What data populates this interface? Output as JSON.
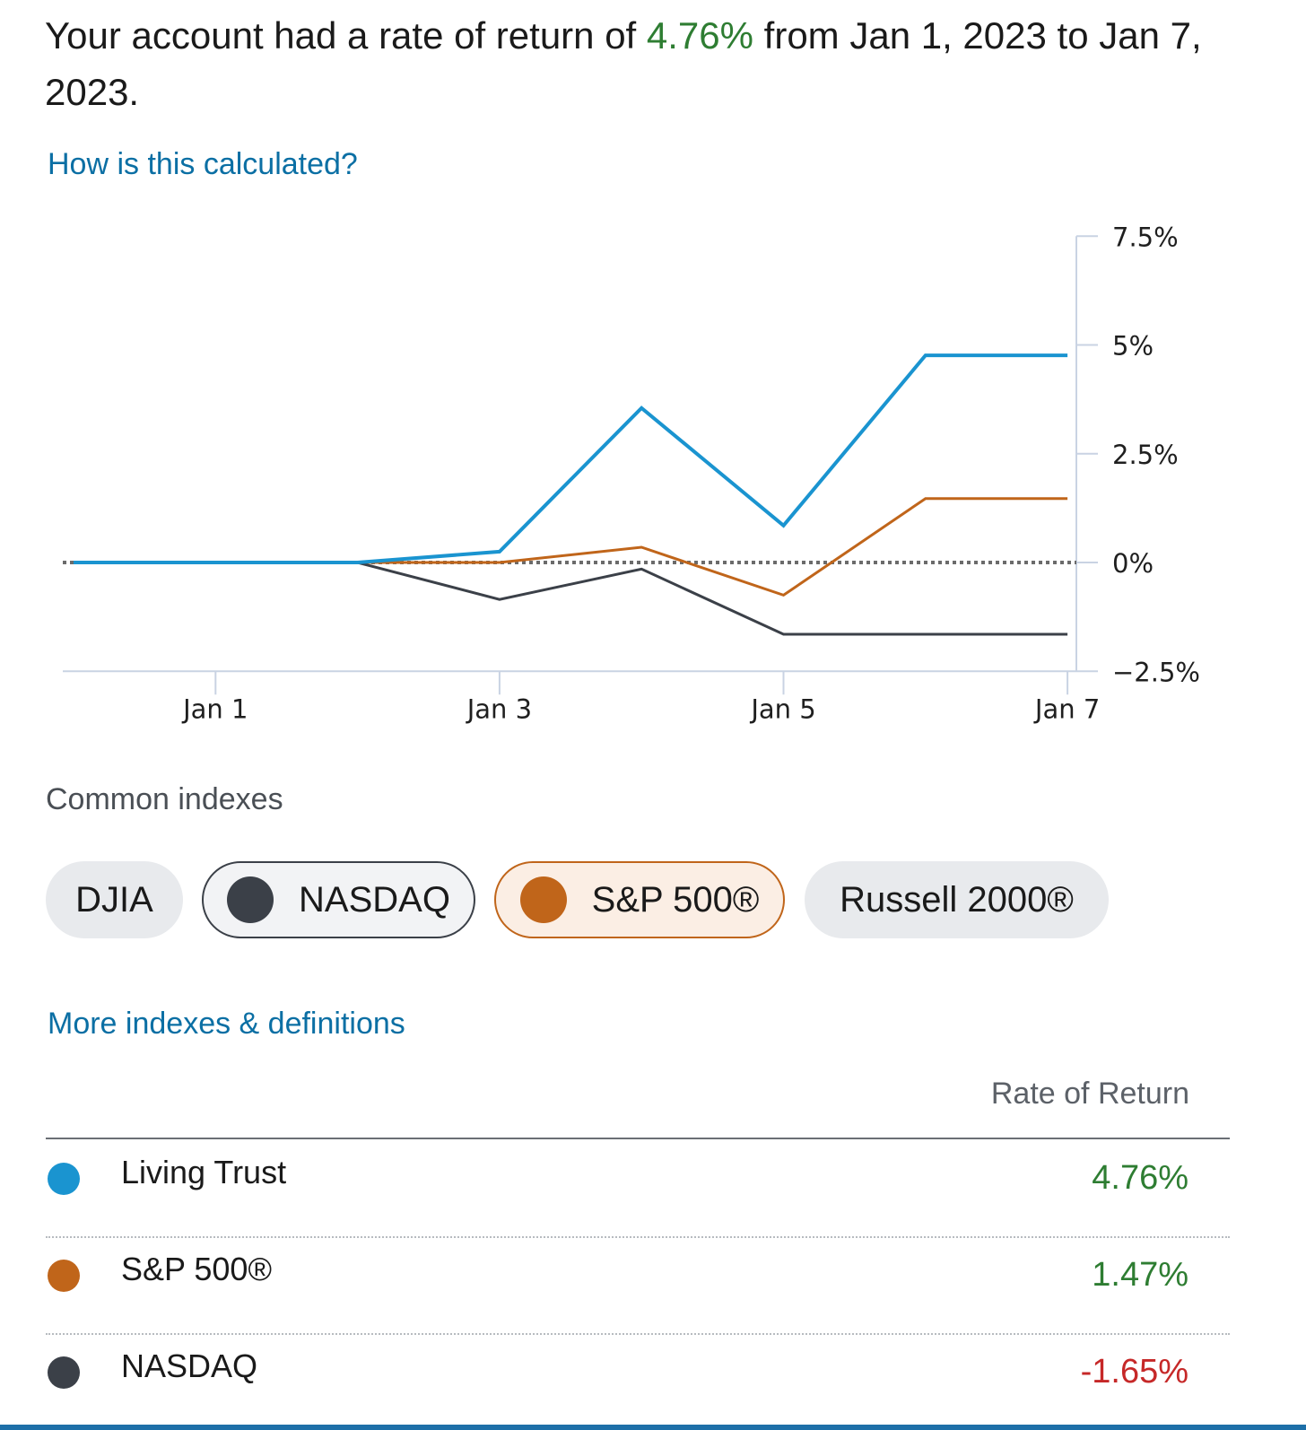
{
  "summary": {
    "prefix": "Your account had a rate of return of ",
    "rate": "4.76%",
    "suffix": " from Jan 1, 2023 to Jan 7, 2023."
  },
  "links": {
    "how_calculated": "How is this calculated?",
    "more_indexes": "More indexes & definitions"
  },
  "colors": {
    "account": "#1a94d0",
    "sp500": "#c0651a",
    "nasdaq": "#3b4048",
    "positive": "#2e7d32",
    "negative": "#c62828"
  },
  "chart_data": {
    "type": "line",
    "categories": [
      "",
      "Jan 1",
      "",
      "Jan 3",
      "",
      "Jan 5",
      "",
      "Jan 7"
    ],
    "x_ticks": [
      "Jan 1",
      "Jan 3",
      "Jan 5",
      "Jan 7"
    ],
    "ylim": [
      -2.5,
      7.5
    ],
    "y_ticks": [
      "7.5%",
      "5%",
      "2.5%",
      "0%",
      "−2.5%"
    ],
    "y_tick_values": [
      7.5,
      5,
      2.5,
      0,
      -2.5
    ],
    "baseline": 0,
    "axis_position": "right",
    "series": [
      {
        "name": "Living Trust",
        "color": "#1a94d0",
        "values": [
          0,
          0,
          0,
          0.25,
          3.55,
          0.85,
          4.76,
          4.76
        ]
      },
      {
        "name": "S&P 500®",
        "color": "#c0651a",
        "values": [
          0,
          0,
          0,
          0,
          0.35,
          -0.75,
          1.47,
          1.47
        ]
      },
      {
        "name": "NASDAQ",
        "color": "#3b4048",
        "values": [
          0,
          0,
          0,
          -0.85,
          -0.15,
          -1.65,
          -1.65,
          -1.65
        ]
      }
    ]
  },
  "indexes": {
    "label": "Common indexes",
    "chips": [
      {
        "label": "DJIA",
        "selected": false
      },
      {
        "label": "NASDAQ",
        "selected": true,
        "color": "#3b4048"
      },
      {
        "label": "S&P 500®",
        "selected": true,
        "color": "#c0651a"
      },
      {
        "label": "Russell 2000®",
        "selected": false
      }
    ]
  },
  "table": {
    "header": "Rate of Return",
    "rows": [
      {
        "name": "Living Trust",
        "value": "4.76%",
        "color": "#1a94d0",
        "sign": "pos"
      },
      {
        "name": "S&P 500®",
        "value": "1.47%",
        "color": "#c0651a",
        "sign": "pos"
      },
      {
        "name": "NASDAQ",
        "value": "-1.65%",
        "color": "#3b4048",
        "sign": "neg"
      }
    ]
  }
}
